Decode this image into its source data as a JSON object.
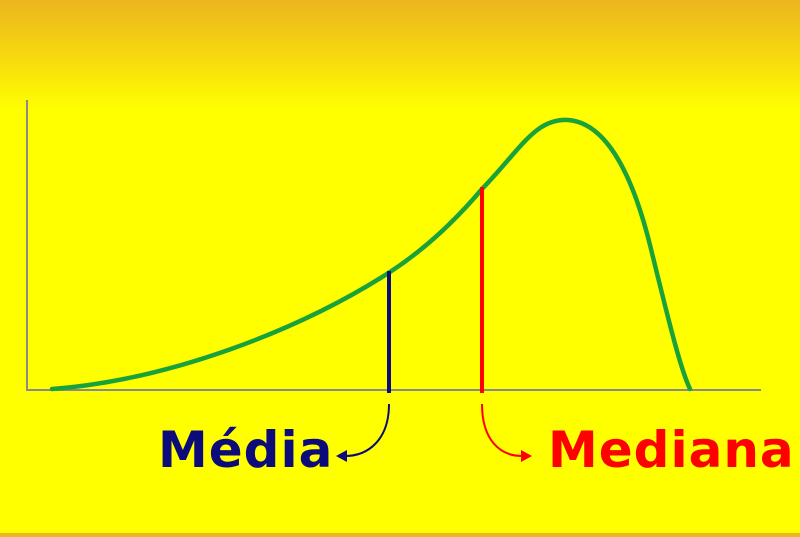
{
  "labels": {
    "mean": "Média",
    "median": "Mediana"
  },
  "colors": {
    "background": "#FFFF00",
    "axes": "#8A8A8A",
    "curve": "#1AA23A",
    "mean": "#0B0B7A",
    "median": "#FF0000"
  }
}
